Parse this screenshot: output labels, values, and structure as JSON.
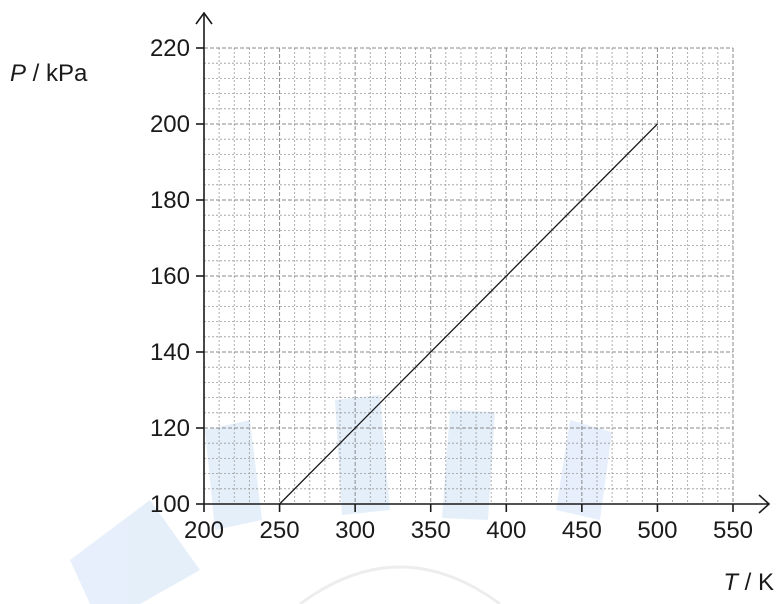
{
  "chart_data": {
    "type": "line",
    "x_axis": {
      "symbol": "T",
      "unit_suffix": " / K",
      "range": [
        200,
        550
      ],
      "ticks": [
        200,
        250,
        300,
        350,
        400,
        450,
        500,
        550
      ],
      "minor_step": 10
    },
    "y_axis": {
      "symbol": "P",
      "unit_suffix": " / kPa",
      "range": [
        100,
        220
      ],
      "ticks": [
        100,
        120,
        140,
        160,
        180,
        200,
        220
      ],
      "minor_step": 4
    },
    "grid": true,
    "series": [
      {
        "points": [
          [
            250,
            100
          ],
          [
            500,
            200
          ]
        ]
      }
    ]
  }
}
